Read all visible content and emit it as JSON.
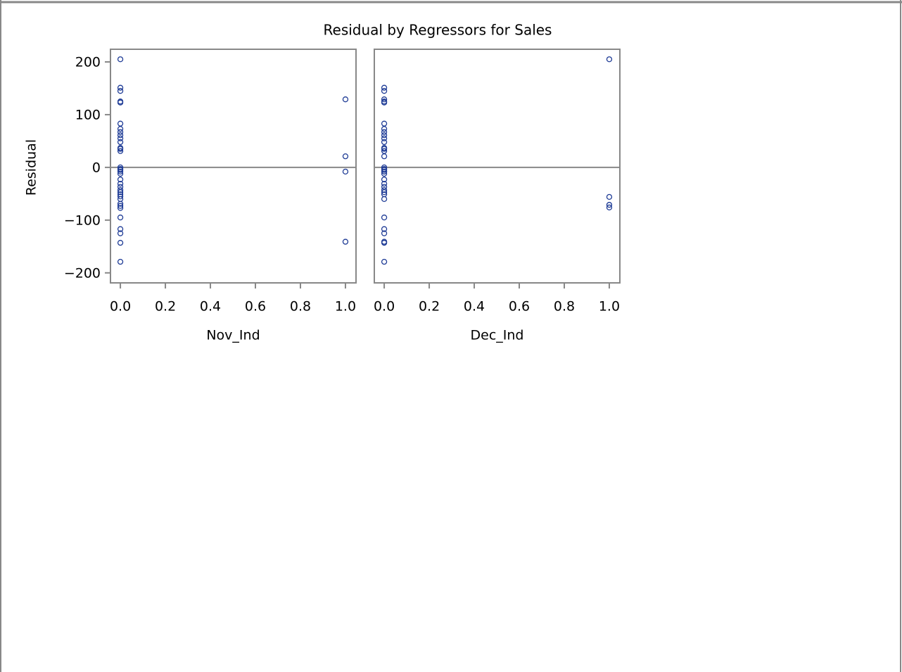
{
  "chart_data": [
    {
      "type": "scatter",
      "title": "Residual by Regressors for Sales",
      "ylabel": "Residual",
      "xlabel": "Nov_Ind",
      "color": "#1f3c96",
      "refline": 0,
      "xlim": [
        -0.044,
        1.047
      ],
      "xticks": [
        {
          "value": 0,
          "label": "0.0"
        },
        0.2,
        0.4,
        0.6,
        0.8,
        {
          "value": 1,
          "label": "1.0"
        }
      ],
      "ylim": [
        -219,
        224
      ],
      "yticks": [
        {
          "value": -200,
          "label": "−200"
        },
        {
          "value": -100,
          "label": "−100"
        },
        0,
        100,
        200
      ],
      "x": [
        0,
        0,
        0,
        0,
        0,
        0,
        0,
        0,
        0,
        0,
        0,
        0,
        0,
        0,
        0,
        0,
        0,
        0,
        0,
        0,
        0,
        0,
        0,
        0,
        0,
        0,
        0,
        0,
        0,
        0,
        0,
        0,
        0,
        0,
        0,
        1,
        1,
        1,
        1
      ],
      "values": [
        205,
        151,
        145,
        125,
        123,
        83,
        73,
        67,
        61,
        55,
        48,
        37,
        35,
        31,
        0,
        -3,
        -5,
        -8,
        -12,
        -23,
        -31,
        -37,
        -43,
        -47,
        -51,
        -55,
        -60,
        -69,
        -73,
        -77,
        -95,
        -117,
        -125,
        -143,
        -179,
        129,
        21,
        -8,
        -141
      ]
    },
    {
      "type": "scatter",
      "xlabel": "Dec_Ind",
      "color": "#1f3c96",
      "refline": 0,
      "xlim": [
        -0.044,
        1.047
      ],
      "xticks": [
        {
          "value": 0,
          "label": "0.0"
        },
        0.2,
        0.4,
        0.6,
        0.8,
        {
          "value": 1,
          "label": "1.0"
        }
      ],
      "ylim": [
        -219,
        224
      ],
      "x": [
        0,
        0,
        0,
        0,
        0,
        0,
        0,
        0,
        0,
        0,
        0,
        0,
        0,
        0,
        0,
        0,
        0,
        0,
        0,
        0,
        0,
        0,
        0,
        0,
        0,
        0,
        0,
        0,
        0,
        0,
        0,
        0,
        0,
        0,
        1,
        1,
        1,
        1
      ],
      "values": [
        151,
        145,
        129,
        125,
        123,
        83,
        73,
        67,
        61,
        55,
        48,
        37,
        35,
        31,
        21,
        0,
        -3,
        -5,
        -8,
        -8,
        -12,
        -23,
        -31,
        -37,
        -43,
        -47,
        -51,
        -60,
        -95,
        -117,
        -125,
        -141,
        -143,
        -179,
        205,
        -56,
        -71,
        -76
      ]
    }
  ]
}
